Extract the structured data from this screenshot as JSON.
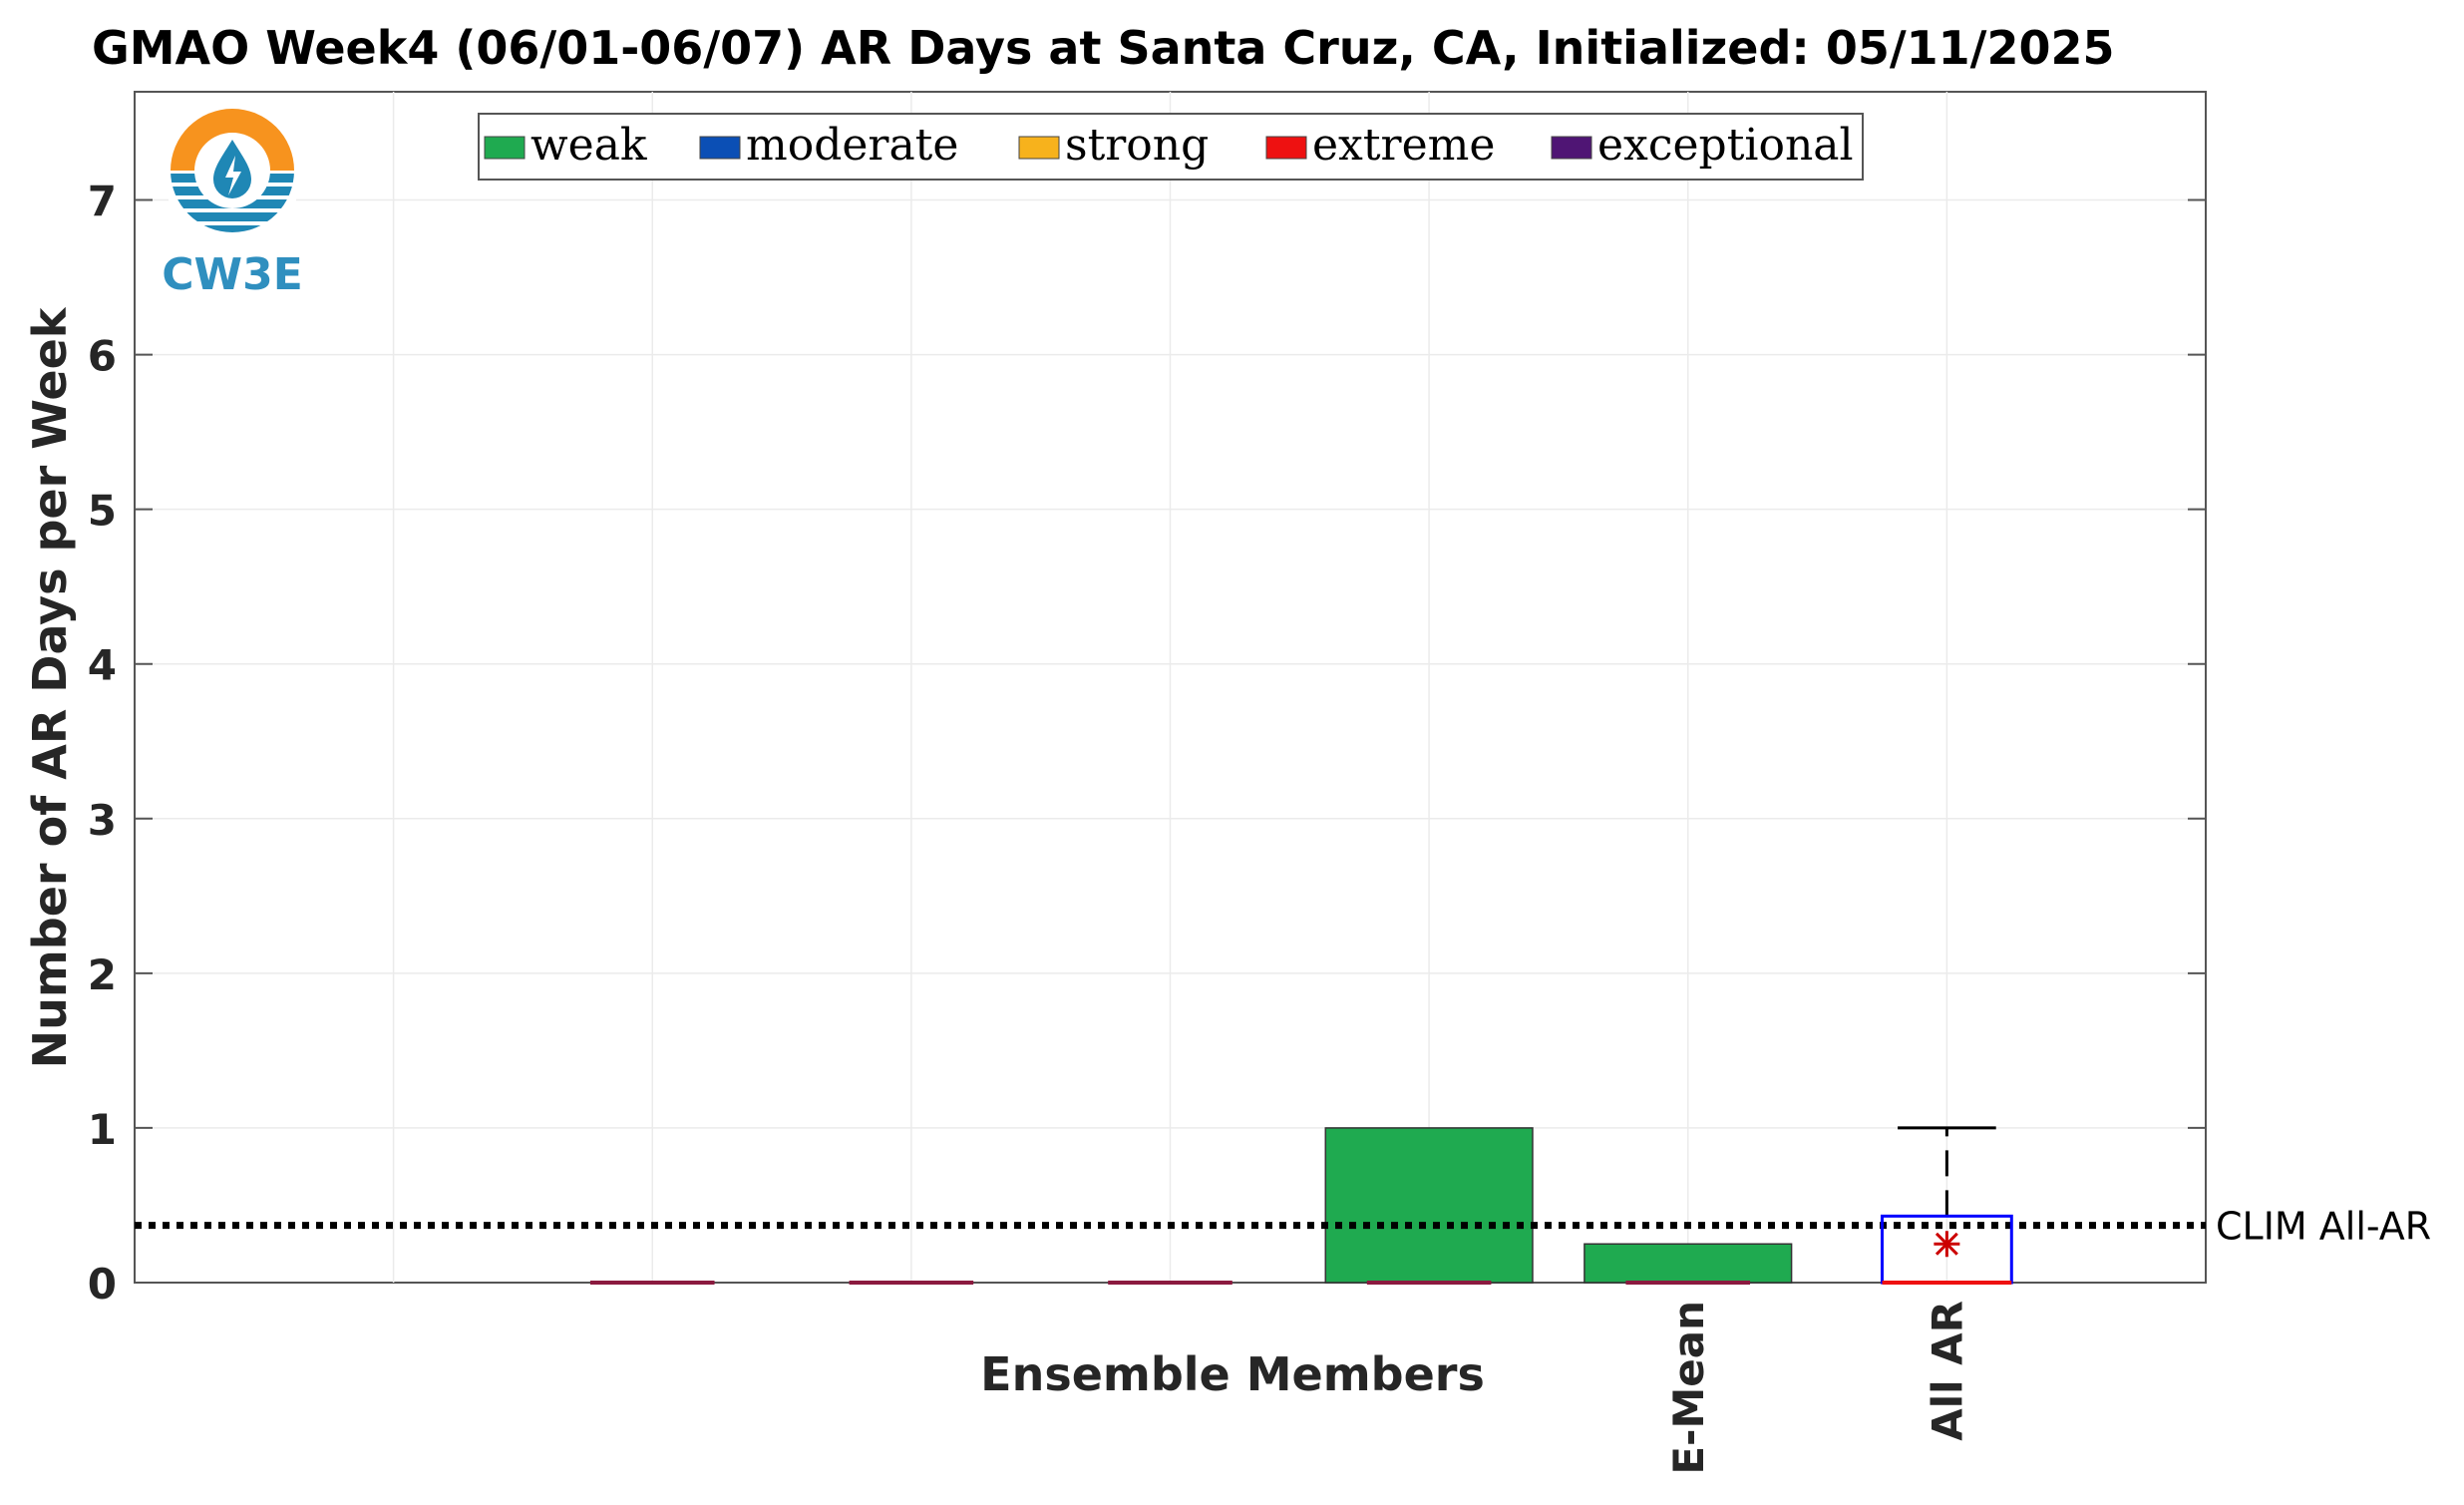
{
  "chart_data": {
    "type": "bar",
    "title": "GMAO Week4 (06/01-06/07) AR Days at Santa Cruz, CA, Initialized: 05/11/2025",
    "xlabel": "Ensemble Members",
    "ylabel": "Number of AR Days per Week",
    "ylim": [
      0,
      7.7
    ],
    "yticks": [
      0,
      1,
      2,
      3,
      4,
      5,
      6,
      7
    ],
    "grid": true,
    "x_slots": 7,
    "categories": [
      "",
      "",
      "",
      "",
      "",
      "E-Mean",
      "All AR"
    ],
    "series": [
      {
        "name": "weak",
        "color": "#1faa50",
        "values": [
          0,
          0,
          0,
          0,
          1,
          0.25,
          0
        ]
      },
      {
        "name": "moderate",
        "color": "#0b4fb5",
        "values": [
          0,
          0,
          0,
          0,
          0,
          0,
          0
        ]
      },
      {
        "name": "strong",
        "color": "#f7b21c",
        "values": [
          0,
          0,
          0,
          0,
          0,
          0,
          0
        ]
      },
      {
        "name": "extreme",
        "color": "#ee1111",
        "values": [
          0,
          0,
          0,
          0,
          0,
          0,
          0
        ]
      },
      {
        "name": "exceptional",
        "color": "#4f1574",
        "values": [
          0,
          0,
          0,
          0,
          0,
          0,
          0
        ]
      }
    ],
    "legend_position": "top-center",
    "reference_line": {
      "label": "CLIM All-AR",
      "value": 0.37,
      "style": "dotted",
      "color": "#000000"
    },
    "boxplot": {
      "category": "All AR",
      "min": 0,
      "q1": 0,
      "median": 0,
      "q3": 0.43,
      "max": 1,
      "mean": 0.25,
      "box_color": "#0000ff",
      "median_color": "#ee1111",
      "whisker_color": "#000000",
      "mean_marker_color": "#cc0000"
    }
  },
  "logo": {
    "text": "CW3E",
    "colors": {
      "ring": "#f7931e",
      "water": "#1f87b5",
      "text": "#2f8fbf"
    }
  }
}
